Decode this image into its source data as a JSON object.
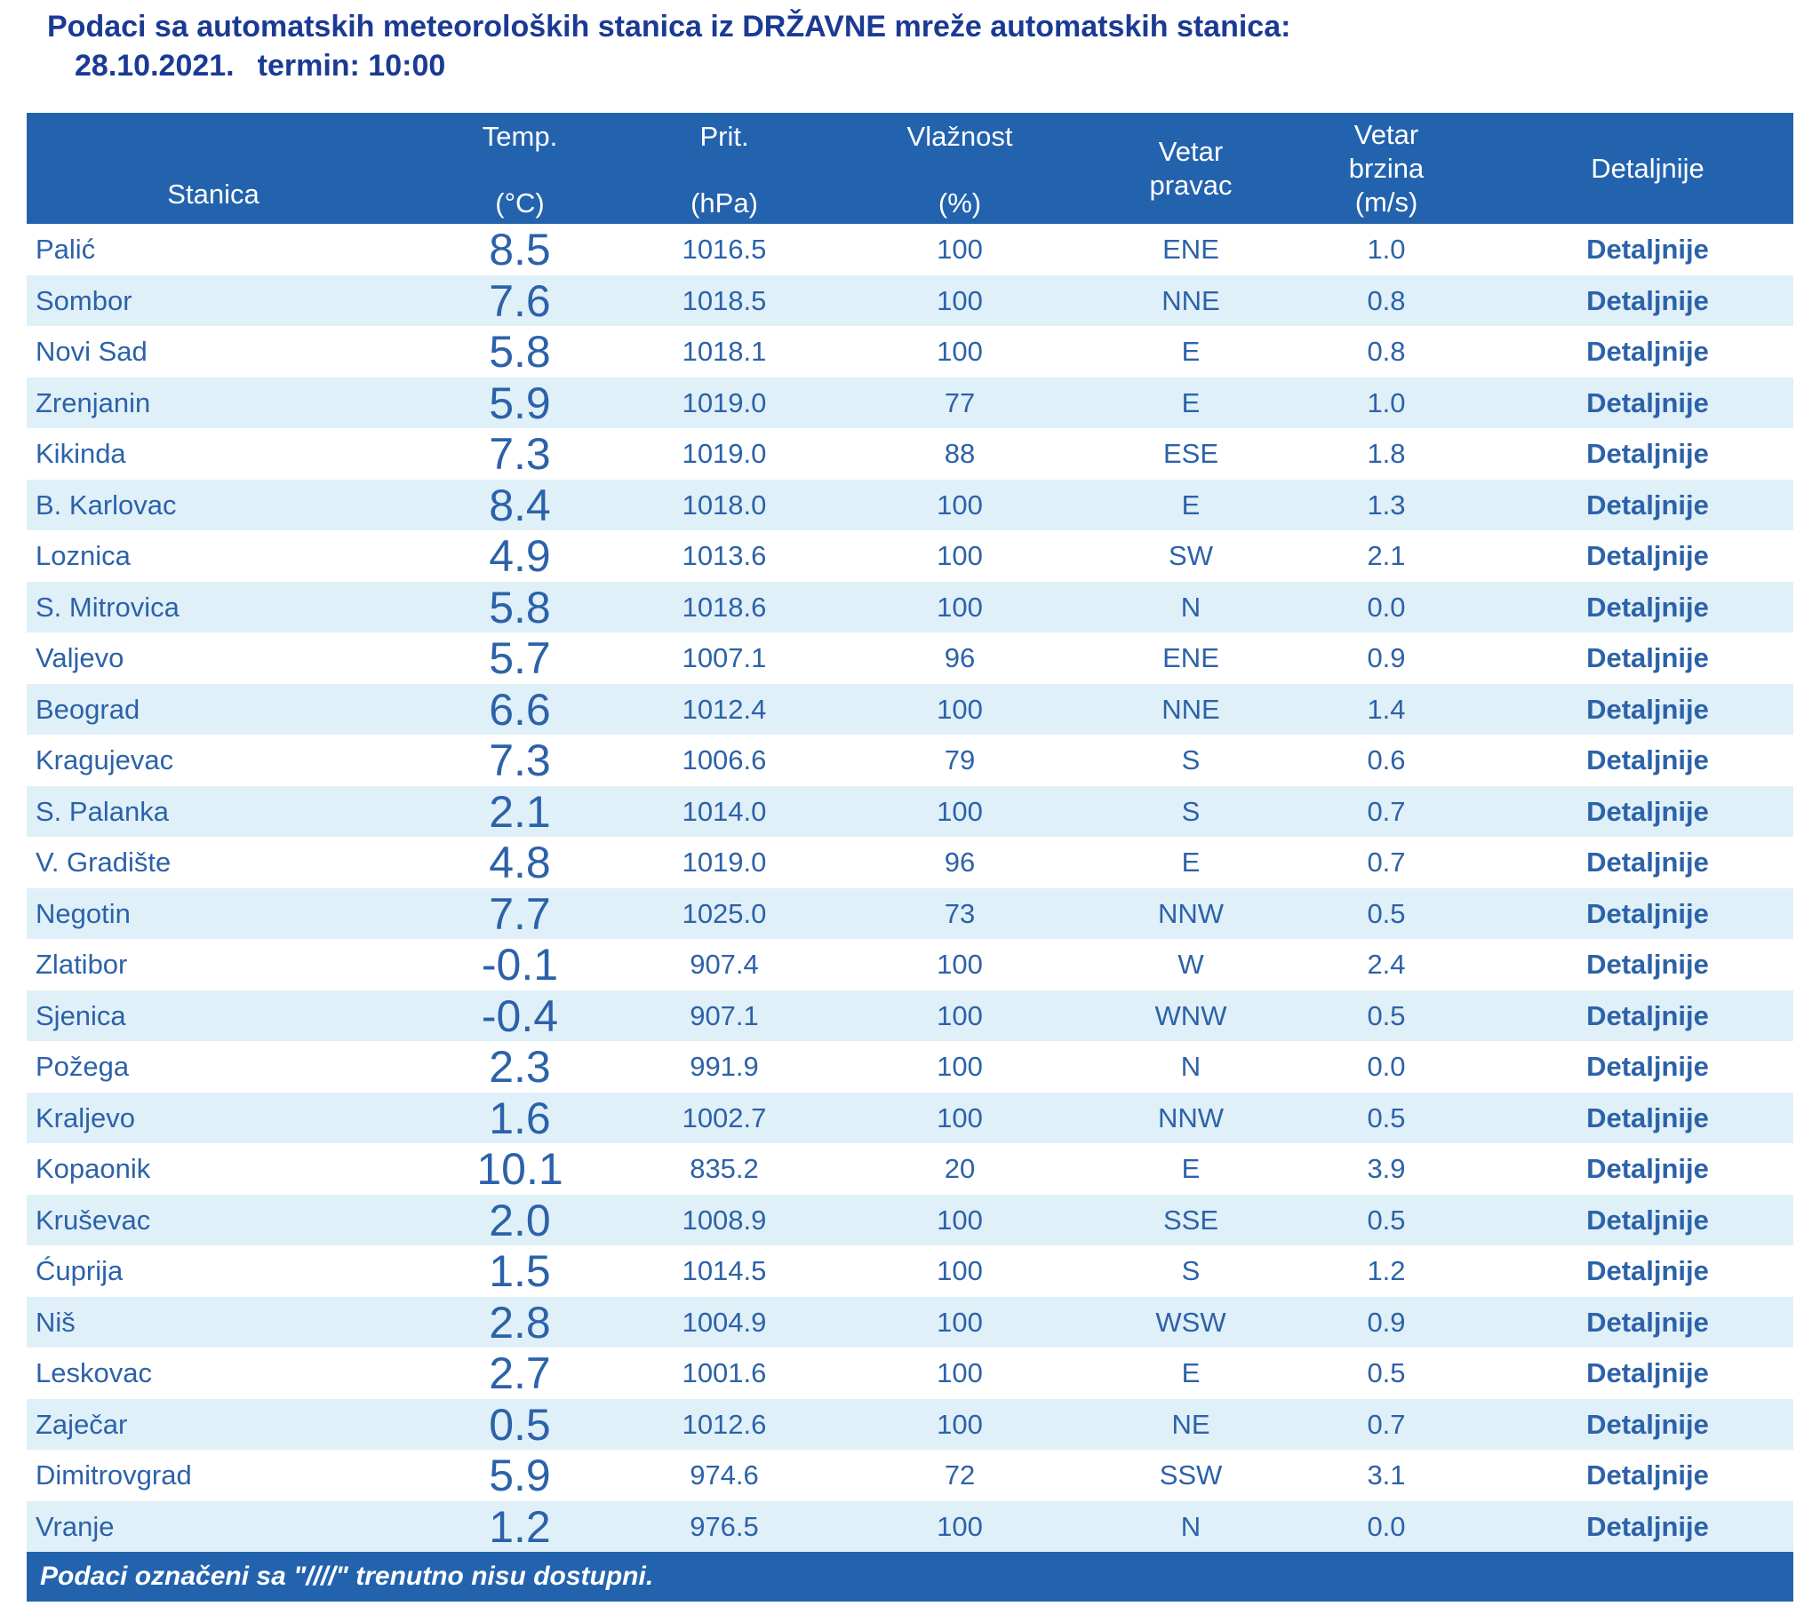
{
  "title": {
    "line1": "Podaci sa automatskih meteoroloških stanica iz DRŽAVNE mreže automatskih stanica:",
    "date": "28.10.2021.",
    "term": "termin: 10:00"
  },
  "table": {
    "header": {
      "station": "Stanica",
      "temp": {
        "label": "Temp.",
        "unit": "(°C)"
      },
      "pressure": {
        "label": "Prit.",
        "unit": "(hPa)"
      },
      "humidity": {
        "label": "Vlažnost",
        "unit": "(%)"
      },
      "wind_dir": {
        "line1": "Vetar",
        "line2": "pravac"
      },
      "wind_speed": {
        "line1": "Vetar",
        "line2": "brzina",
        "unit": "(m/s)"
      },
      "details": "Detaljnije"
    },
    "detail_link_label": "Detaljnije",
    "rows": [
      {
        "station": "Palić",
        "temp": "8.5",
        "pressure": "1016.5",
        "humidity": "100",
        "wind_dir": "ENE",
        "wind_speed": "1.0"
      },
      {
        "station": "Sombor",
        "temp": "7.6",
        "pressure": "1018.5",
        "humidity": "100",
        "wind_dir": "NNE",
        "wind_speed": "0.8"
      },
      {
        "station": "Novi Sad",
        "temp": "5.8",
        "pressure": "1018.1",
        "humidity": "100",
        "wind_dir": "E",
        "wind_speed": "0.8"
      },
      {
        "station": "Zrenjanin",
        "temp": "5.9",
        "pressure": "1019.0",
        "humidity": "77",
        "wind_dir": "E",
        "wind_speed": "1.0"
      },
      {
        "station": "Kikinda",
        "temp": "7.3",
        "pressure": "1019.0",
        "humidity": "88",
        "wind_dir": "ESE",
        "wind_speed": "1.8"
      },
      {
        "station": "B. Karlovac",
        "temp": "8.4",
        "pressure": "1018.0",
        "humidity": "100",
        "wind_dir": "E",
        "wind_speed": "1.3"
      },
      {
        "station": "Loznica",
        "temp": "4.9",
        "pressure": "1013.6",
        "humidity": "100",
        "wind_dir": "SW",
        "wind_speed": "2.1"
      },
      {
        "station": "S. Mitrovica",
        "temp": "5.8",
        "pressure": "1018.6",
        "humidity": "100",
        "wind_dir": "N",
        "wind_speed": "0.0"
      },
      {
        "station": "Valjevo",
        "temp": "5.7",
        "pressure": "1007.1",
        "humidity": "96",
        "wind_dir": "ENE",
        "wind_speed": "0.9"
      },
      {
        "station": "Beograd",
        "temp": "6.6",
        "pressure": "1012.4",
        "humidity": "100",
        "wind_dir": "NNE",
        "wind_speed": "1.4"
      },
      {
        "station": "Kragujevac",
        "temp": "7.3",
        "pressure": "1006.6",
        "humidity": "79",
        "wind_dir": "S",
        "wind_speed": "0.6"
      },
      {
        "station": "S. Palanka",
        "temp": "2.1",
        "pressure": "1014.0",
        "humidity": "100",
        "wind_dir": "S",
        "wind_speed": "0.7"
      },
      {
        "station": "V. Gradište",
        "temp": "4.8",
        "pressure": "1019.0",
        "humidity": "96",
        "wind_dir": "E",
        "wind_speed": "0.7"
      },
      {
        "station": "Negotin",
        "temp": "7.7",
        "pressure": "1025.0",
        "humidity": "73",
        "wind_dir": "NNW",
        "wind_speed": "0.5"
      },
      {
        "station": "Zlatibor",
        "temp": "-0.1",
        "pressure": "907.4",
        "humidity": "100",
        "wind_dir": "W",
        "wind_speed": "2.4"
      },
      {
        "station": "Sjenica",
        "temp": "-0.4",
        "pressure": "907.1",
        "humidity": "100",
        "wind_dir": "WNW",
        "wind_speed": "0.5"
      },
      {
        "station": "Požega",
        "temp": "2.3",
        "pressure": "991.9",
        "humidity": "100",
        "wind_dir": "N",
        "wind_speed": "0.0"
      },
      {
        "station": "Kraljevo",
        "temp": "1.6",
        "pressure": "1002.7",
        "humidity": "100",
        "wind_dir": "NNW",
        "wind_speed": "0.5"
      },
      {
        "station": "Kopaonik",
        "temp": "10.1",
        "pressure": "835.2",
        "humidity": "20",
        "wind_dir": "E",
        "wind_speed": "3.9"
      },
      {
        "station": "Kruševac",
        "temp": "2.0",
        "pressure": "1008.9",
        "humidity": "100",
        "wind_dir": "SSE",
        "wind_speed": "0.5"
      },
      {
        "station": "Ćuprija",
        "temp": "1.5",
        "pressure": "1014.5",
        "humidity": "100",
        "wind_dir": "S",
        "wind_speed": "1.2"
      },
      {
        "station": "Niš",
        "temp": "2.8",
        "pressure": "1004.9",
        "humidity": "100",
        "wind_dir": "WSW",
        "wind_speed": "0.9"
      },
      {
        "station": "Leskovac",
        "temp": "2.7",
        "pressure": "1001.6",
        "humidity": "100",
        "wind_dir": "E",
        "wind_speed": "0.5"
      },
      {
        "station": "Zaječar",
        "temp": "0.5",
        "pressure": "1012.6",
        "humidity": "100",
        "wind_dir": "NE",
        "wind_speed": "0.7"
      },
      {
        "station": "Dimitrovgrad",
        "temp": "5.9",
        "pressure": "974.6",
        "humidity": "72",
        "wind_dir": "SSW",
        "wind_speed": "3.1"
      },
      {
        "station": "Vranje",
        "temp": "1.2",
        "pressure": "976.5",
        "humidity": "100",
        "wind_dir": "N",
        "wind_speed": "0.0"
      }
    ]
  },
  "footer": {
    "note": "Podaci označeni sa \"////\" trenutno nisu dostupni."
  },
  "colors": {
    "header_bg": "#2363ae",
    "footer_bg": "#2363ae",
    "row_alt_bg": "#e0f0f8",
    "data_text": "#2c62a9",
    "title_text": "#1a3a94",
    "header_text": "#ffffff"
  }
}
